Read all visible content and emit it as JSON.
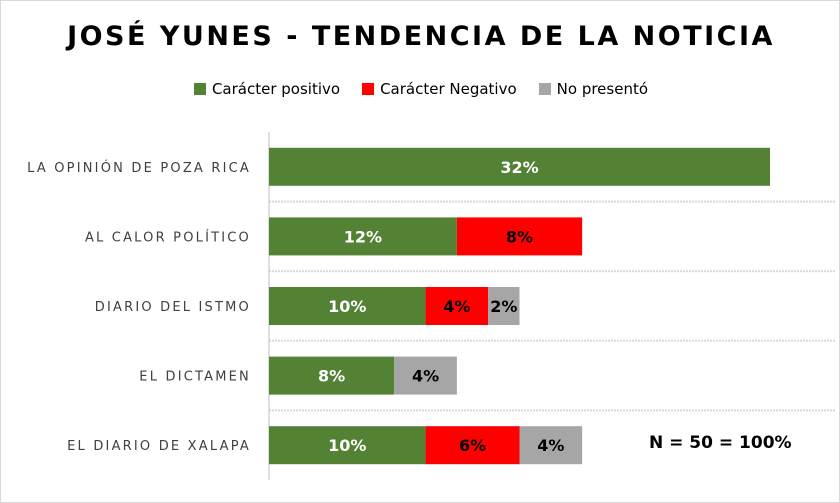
{
  "chart_data": {
    "type": "bar",
    "orientation": "horizontal",
    "stacked": true,
    "title": "JOSÉ YUNES - TENDENCIA  DE LA NOTICIA",
    "categories": [
      "LA OPINIÓN DE POZA RICA",
      "AL CALOR POLÍTICO",
      "DIARIO DEL ISTMO",
      "EL DICTAMEN",
      "EL DIARIO DE XALAPA"
    ],
    "series": [
      {
        "name": "Carácter positivo",
        "color": "#548235",
        "label_color": "#ffffff",
        "values": [
          32,
          12,
          10,
          8,
          10
        ]
      },
      {
        "name": "Carácter Negativo",
        "color": "#FF0000",
        "label_color": "#000000",
        "values": [
          0,
          8,
          4,
          0,
          6
        ]
      },
      {
        "name": "No  presentó",
        "color": "#A6A6A6",
        "label_color": "#000000",
        "values": [
          0,
          0,
          2,
          4,
          4
        ]
      }
    ],
    "value_suffix": "%",
    "xlim": [
      0,
      32
    ],
    "legend_position": "top",
    "annotation": "N = 50 = 100%"
  }
}
